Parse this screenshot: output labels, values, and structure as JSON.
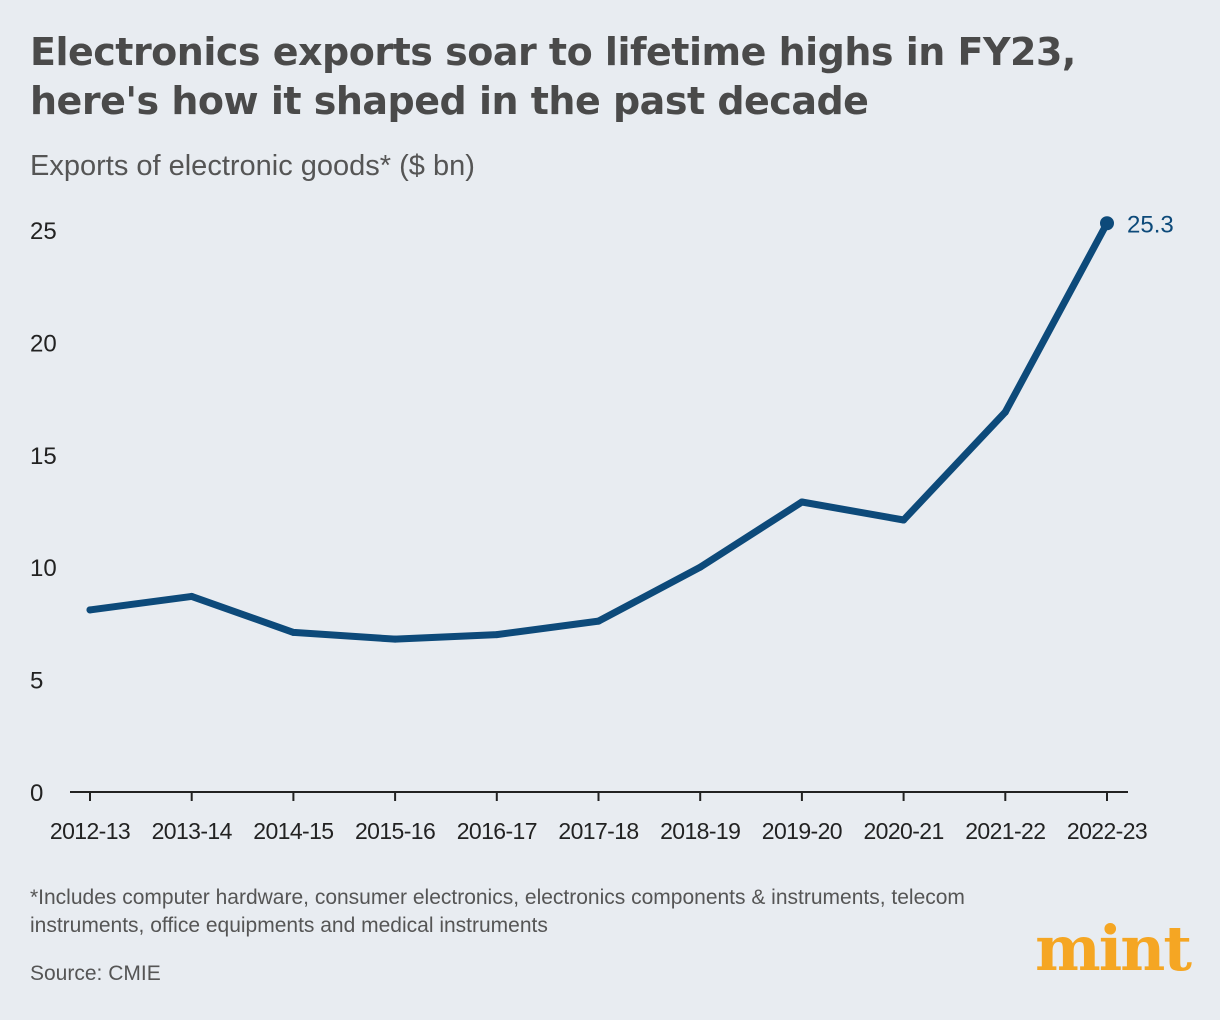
{
  "header": {
    "title": "Electronics exports soar to lifetime highs in FY23, here's how it shaped in the past decade",
    "subtitle": "Exports of electronic goods* ($ bn)"
  },
  "footer": {
    "footnote": "*Includes computer hardware, consumer electronics, electronics components & instruments, telecom instruments, office equipments and medical instruments",
    "source": "Source: CMIE",
    "logo": "mint"
  },
  "colors": {
    "background": "#e8ecf1",
    "line": "#0d4a7a",
    "logo": "#f5a623"
  },
  "chart_data": {
    "type": "line",
    "title": "Electronics exports soar to lifetime highs in FY23, here's how it shaped in the past decade",
    "ylabel": "Exports of electronic goods* ($ bn)",
    "xlabel": "",
    "categories": [
      "2012-13",
      "2013-14",
      "2014-15",
      "2015-16",
      "2016-17",
      "2017-18",
      "2018-19",
      "2019-20",
      "2020-21",
      "2021-22",
      "2022-23"
    ],
    "series": [
      {
        "values": [
          8.1,
          8.7,
          7.1,
          6.8,
          7.0,
          7.6,
          10.0,
          12.9,
          12.1,
          16.9,
          25.3
        ]
      }
    ],
    "ylim": [
      0,
      25
    ],
    "yticks": [
      "0",
      "5",
      "10",
      "15",
      "20",
      "25"
    ],
    "annotations": [
      {
        "category": "2022-23",
        "value": 25.3,
        "label": "25.3"
      }
    ],
    "grid": false,
    "legend": "none"
  }
}
